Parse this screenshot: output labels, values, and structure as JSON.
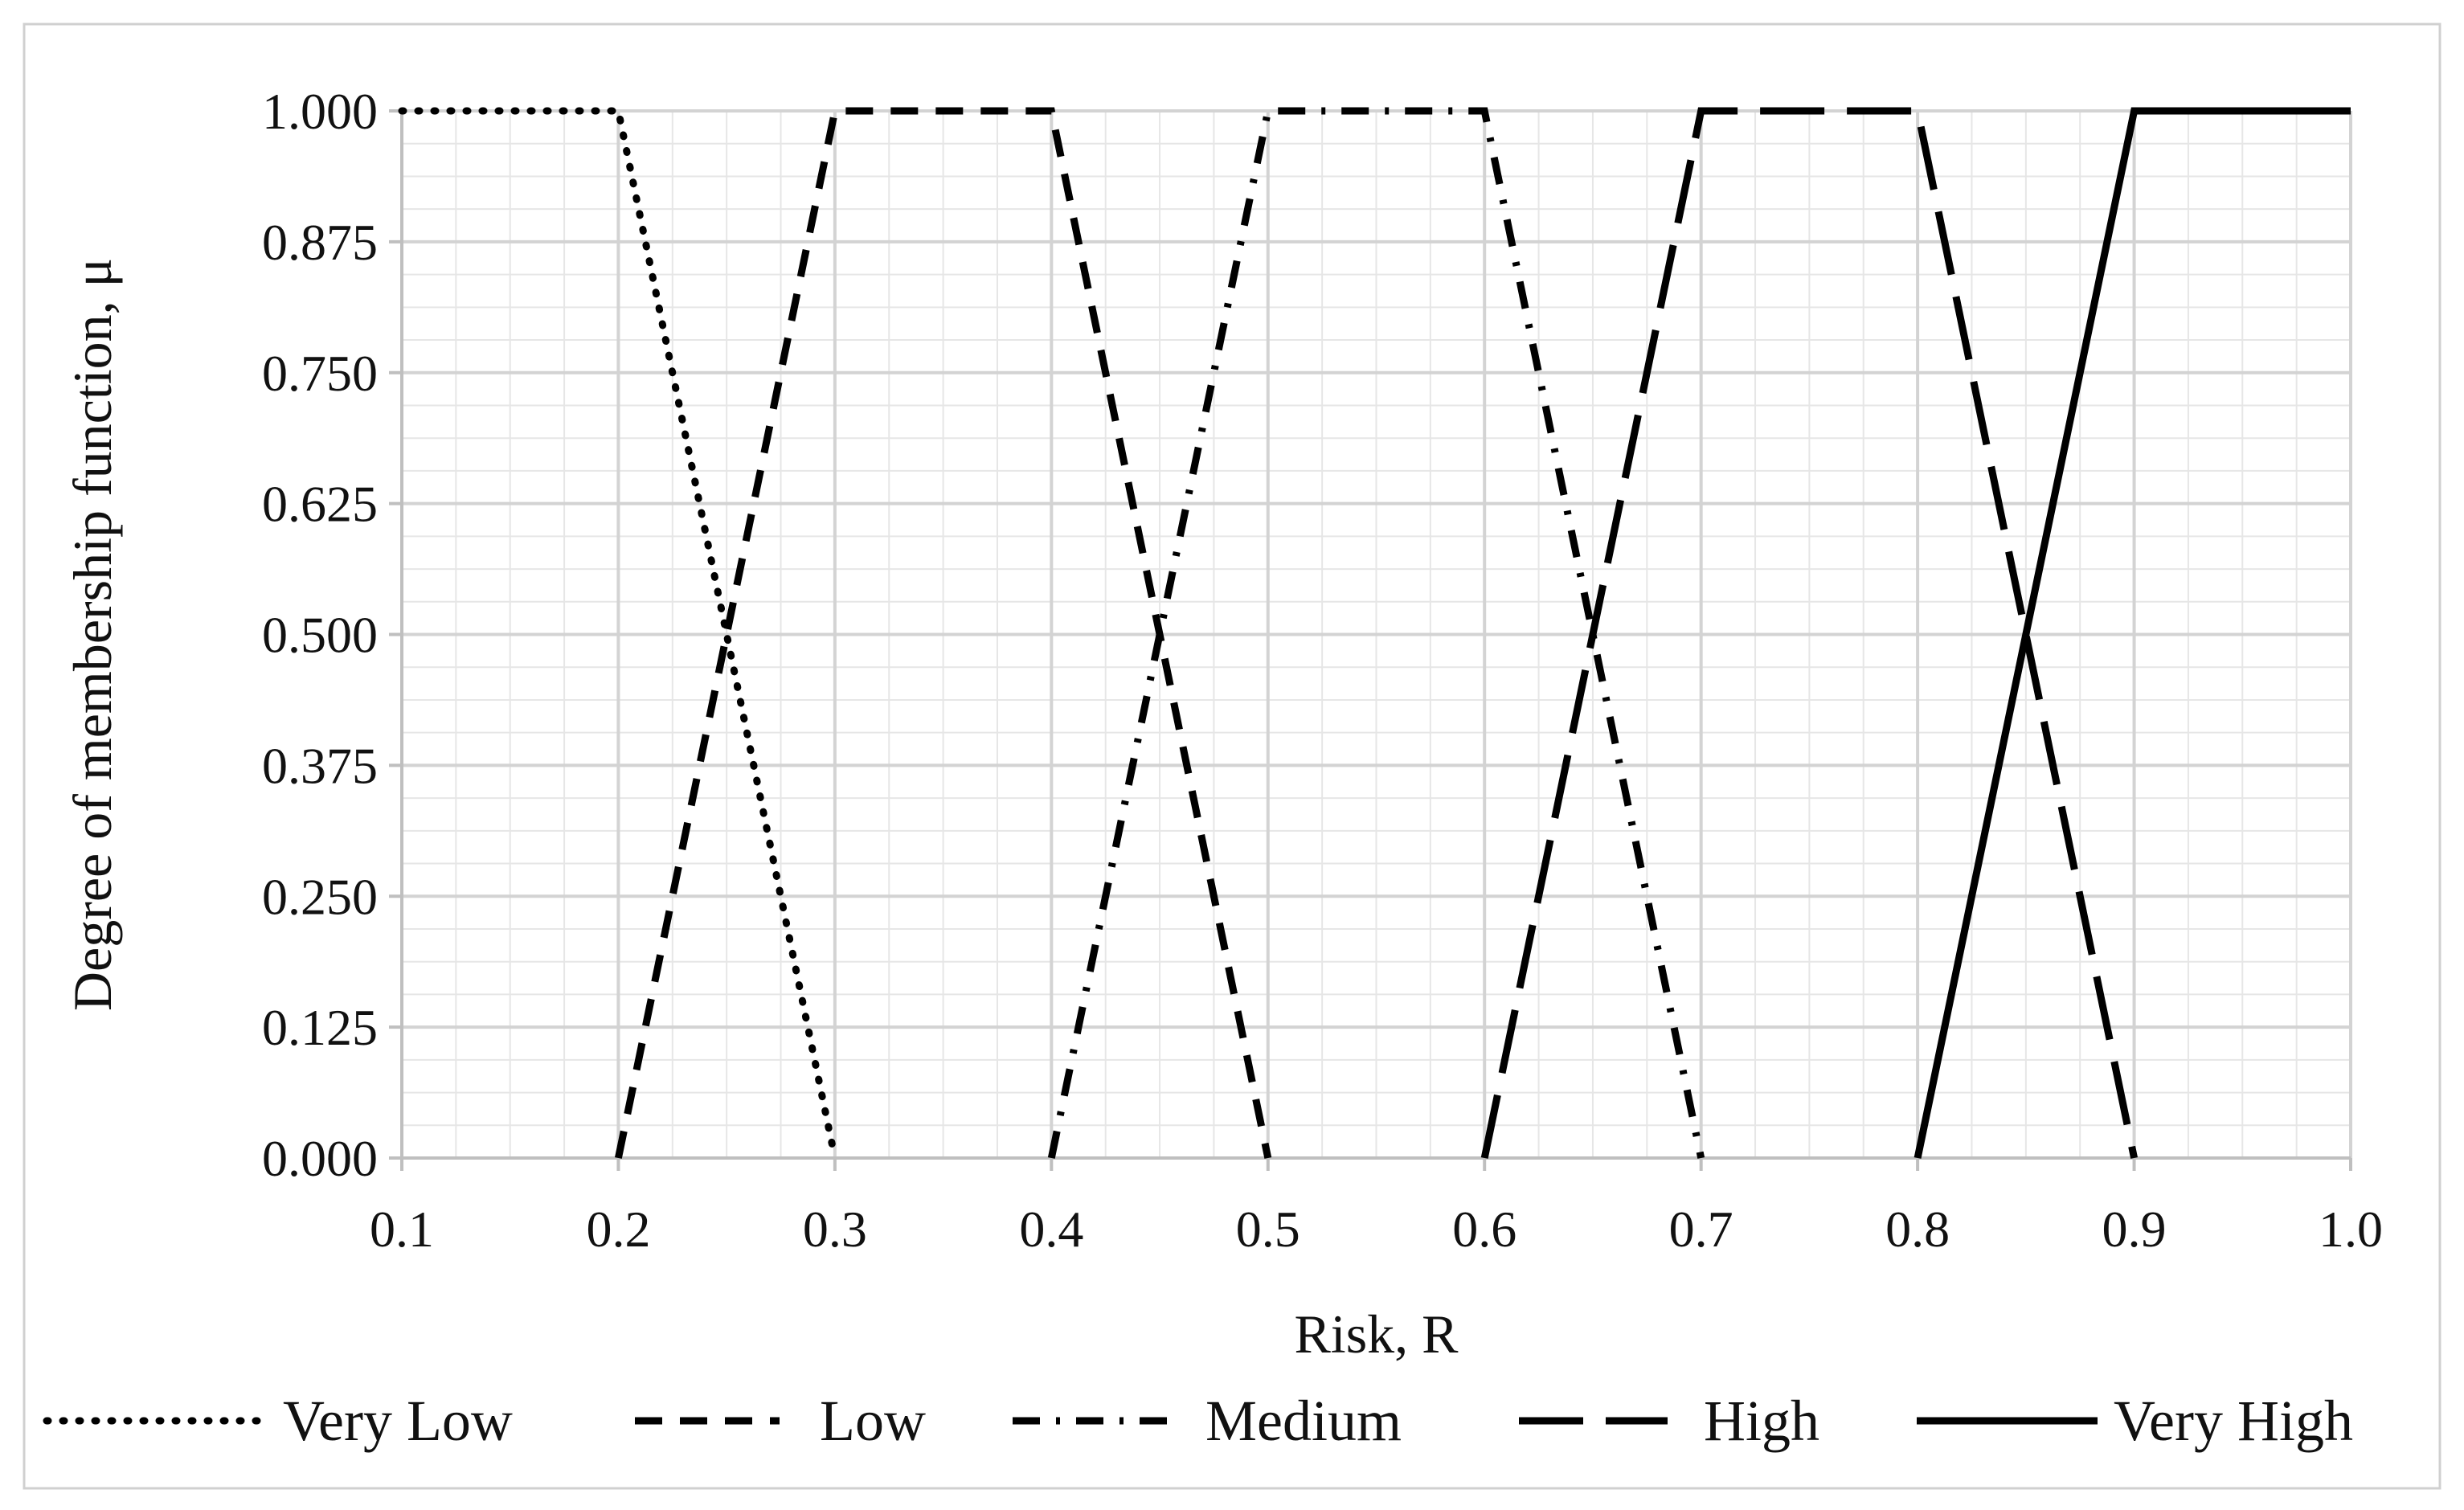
{
  "chart_data": {
    "type": "line",
    "xlabel": "Risk, R",
    "ylabel": "Degree of membership function, μ",
    "xlim": [
      0.1,
      1.0
    ],
    "ylim": [
      0.0,
      1.0
    ],
    "x_ticks": [
      "0.1",
      "0.2",
      "0.3",
      "0.4",
      "0.5",
      "0.6",
      "0.7",
      "0.8",
      "0.9",
      "1.0"
    ],
    "y_ticks": [
      "0.000",
      "0.125",
      "0.250",
      "0.375",
      "0.500",
      "0.625",
      "0.750",
      "0.875",
      "1.000"
    ],
    "grid": true,
    "legend_position": "bottom",
    "series": [
      {
        "name": "Very Low",
        "style": "dotted",
        "points": [
          [
            0.1,
            1.0
          ],
          [
            0.2,
            1.0
          ],
          [
            0.3,
            0.0
          ]
        ]
      },
      {
        "name": "Low",
        "style": "dashed",
        "points": [
          [
            0.2,
            0.0
          ],
          [
            0.3,
            1.0
          ],
          [
            0.4,
            1.0
          ],
          [
            0.5,
            0.0
          ]
        ]
      },
      {
        "name": "Medium",
        "style": "dash-dot",
        "points": [
          [
            0.4,
            0.0
          ],
          [
            0.5,
            1.0
          ],
          [
            0.6,
            1.0
          ],
          [
            0.7,
            0.0
          ]
        ]
      },
      {
        "name": "High",
        "style": "long-dash",
        "points": [
          [
            0.6,
            0.0
          ],
          [
            0.7,
            1.0
          ],
          [
            0.8,
            1.0
          ],
          [
            0.9,
            0.0
          ]
        ]
      },
      {
        "name": "Very High",
        "style": "solid",
        "points": [
          [
            0.8,
            0.0
          ],
          [
            0.9,
            1.0
          ],
          [
            1.0,
            1.0
          ]
        ]
      }
    ]
  }
}
